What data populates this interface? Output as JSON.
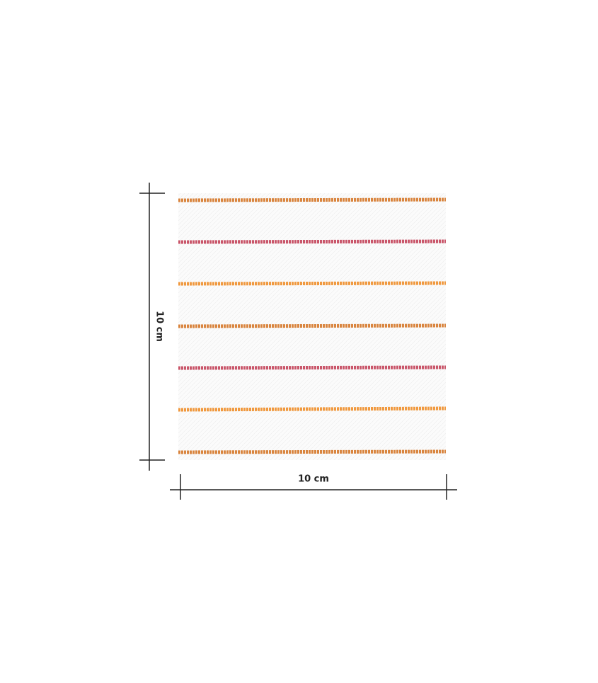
{
  "dimensions": {
    "height_label": "10 cm",
    "width_label": "10 cm"
  }
}
